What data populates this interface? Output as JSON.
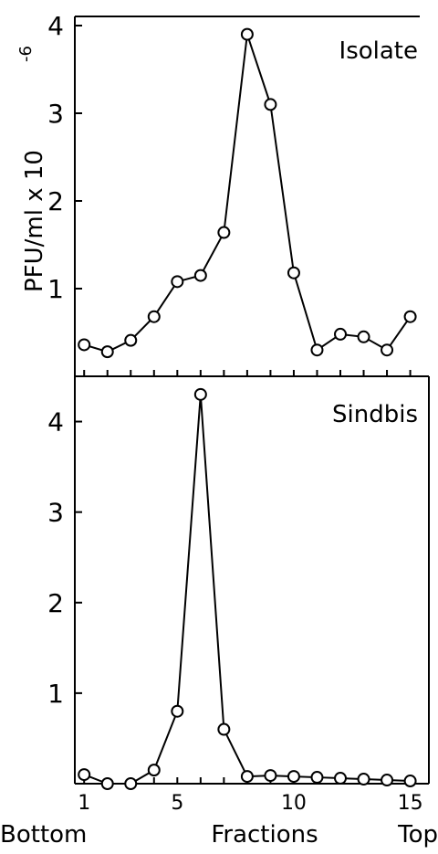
{
  "chart_data": [
    {
      "type": "line",
      "panel_label": "Isolate",
      "ylabel": "PFU/ml x 10",
      "ylabel_exponent": "-6",
      "x": [
        1,
        2,
        3,
        4,
        5,
        6,
        7,
        8,
        9,
        10,
        11,
        12,
        13,
        14,
        15
      ],
      "values": [
        0.36,
        0.28,
        0.41,
        0.68,
        1.08,
        1.15,
        1.64,
        3.9,
        3.1,
        1.18,
        0.3,
        0.48,
        0.45,
        0.3,
        0.68
      ],
      "ylim": [
        0,
        4
      ],
      "yticks": [
        1,
        2,
        3,
        4
      ],
      "ytick_labels": [
        "1",
        "2",
        "3",
        "4"
      ]
    },
    {
      "type": "line",
      "panel_label": "Sindbis",
      "x": [
        1,
        2,
        3,
        4,
        5,
        6,
        7,
        8,
        9,
        10,
        11,
        12,
        13,
        14,
        15
      ],
      "values": [
        0.1,
        0.0,
        0.0,
        0.15,
        0.8,
        4.3,
        0.6,
        0.08,
        0.09,
        0.08,
        0.07,
        0.06,
        0.05,
        0.04,
        0.03
      ],
      "ylim": [
        0,
        4.5
      ],
      "yticks": [
        1,
        2,
        3,
        4
      ],
      "ytick_labels": [
        "1",
        "2",
        "3",
        "4"
      ],
      "xticks": [
        1,
        5,
        10,
        15
      ],
      "xtick_labels": [
        "1",
        "5",
        "10",
        "15"
      ],
      "xlabel": "Fractions",
      "x_left_label": "Bottom",
      "x_right_label": "Top"
    }
  ]
}
